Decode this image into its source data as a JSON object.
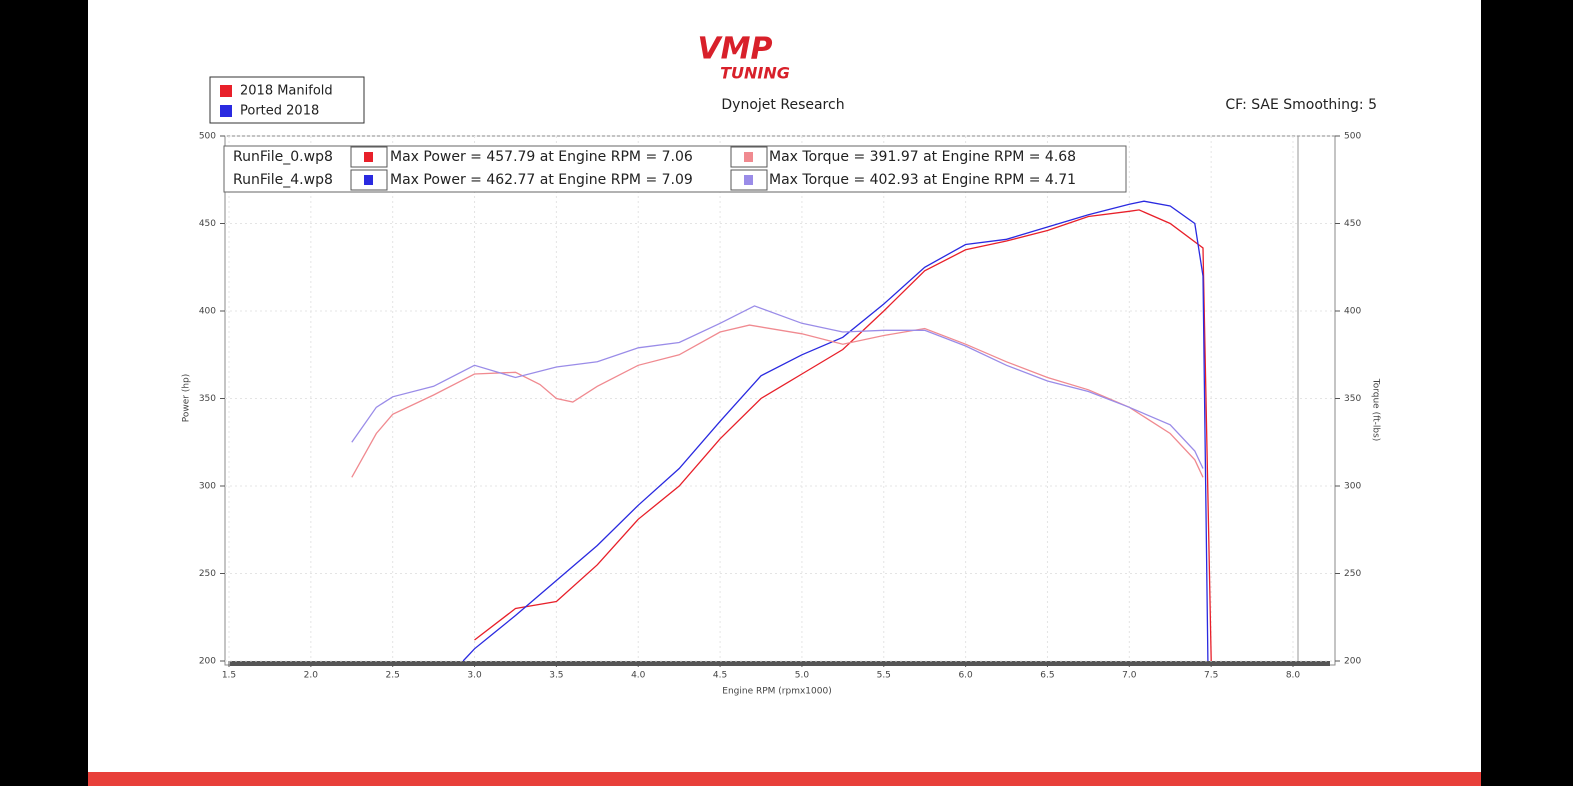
{
  "logo": {
    "line1": "VMP",
    "line2": "TUNING"
  },
  "chart_data": {
    "type": "line",
    "title": "Dynojet Research",
    "subtitle": "CF: SAE Smoothing: 5",
    "x_label": "Engine RPM (rpmx1000)",
    "y_label": "Power (hp)",
    "y2_label": "Torque (ft-lbs)",
    "xlim": [
      1.5,
      8.0
    ],
    "ylim": [
      200,
      500
    ],
    "y2lim": [
      200,
      500
    ],
    "xticks": [
      1.5,
      {
        "value": 2,
        "label": "2.0"
      },
      2.5,
      {
        "value": 3,
        "label": "3.0"
      },
      3.5,
      {
        "value": 4,
        "label": "4.0"
      },
      4.5,
      {
        "value": 5,
        "label": "5.0"
      },
      5.5,
      {
        "value": 6,
        "label": "6.0"
      },
      6.5,
      {
        "value": 7,
        "label": "7.0"
      },
      7.5,
      {
        "value": 8,
        "label": "8.0"
      }
    ],
    "yticks": [
      200,
      250,
      300,
      350,
      400,
      450,
      500
    ],
    "y2ticks": [
      200,
      250,
      300,
      350,
      400,
      450,
      500
    ],
    "grid": true,
    "legend": "upper left",
    "series": [
      {
        "name": "2018 Manifold",
        "color": "#e8202a",
        "x": [
          3.0,
          3.25,
          3.5,
          3.75,
          4.0,
          4.25,
          4.5,
          4.75,
          5.0,
          5.25,
          5.5,
          5.75,
          6.0,
          6.25,
          6.5,
          6.75,
          7.0,
          7.06,
          7.25,
          7.45,
          7.5
        ],
        "values": [
          212,
          230,
          234,
          255,
          281,
          300,
          327,
          350,
          364,
          378,
          400,
          423,
          435,
          440,
          446,
          454,
          457,
          457.79,
          450,
          436,
          200
        ]
      },
      {
        "name": "Ported 2018",
        "color": "#2a2ae0",
        "x": [
          2.93,
          3.0,
          3.25,
          3.5,
          3.75,
          4.0,
          4.25,
          4.5,
          4.75,
          5.0,
          5.25,
          5.5,
          5.75,
          6.0,
          6.25,
          6.5,
          6.75,
          7.0,
          7.09,
          7.25,
          7.4,
          7.45,
          7.48
        ],
        "values": [
          200,
          207,
          226,
          246,
          266,
          289,
          310,
          337,
          363,
          375,
          385,
          404,
          425,
          438,
          441,
          448,
          455,
          461,
          462.77,
          460,
          450,
          420,
          200
        ]
      },
      {
        "color": "#f08a90",
        "axis": "y2",
        "x": [
          2.25,
          2.4,
          2.5,
          2.75,
          3.0,
          3.25,
          3.4,
          3.5,
          3.6,
          3.75,
          4.0,
          4.25,
          4.5,
          4.68,
          5.0,
          5.25,
          5.5,
          5.75,
          6.0,
          6.25,
          6.5,
          6.75,
          7.0,
          7.25,
          7.4,
          7.45
        ],
        "values": [
          305,
          330,
          341,
          352,
          364,
          365,
          358,
          350,
          348,
          357,
          369,
          375,
          388,
          391.97,
          387,
          381,
          386,
          390,
          381,
          371,
          362,
          355,
          345,
          330,
          315,
          305
        ]
      },
      {
        "color": "#9a8ce8",
        "axis": "y2",
        "x": [
          2.25,
          2.4,
          2.5,
          2.75,
          3.0,
          3.25,
          3.5,
          3.75,
          4.0,
          4.25,
          4.5,
          4.71,
          5.0,
          5.25,
          5.5,
          5.75,
          6.0,
          6.25,
          6.5,
          6.75,
          7.0,
          7.25,
          7.4,
          7.45
        ],
        "values": [
          325,
          345,
          351,
          357,
          369,
          362,
          368,
          371,
          379,
          382,
          393,
          402.93,
          393,
          388,
          389,
          389,
          380,
          369,
          360,
          354,
          345,
          335,
          320,
          310
        ]
      }
    ],
    "info_box": {
      "rows": [
        {
          "file": "RunFile_0.wp8",
          "power": "Max Power = 457.79 at Engine RPM = 7.06",
          "torque": "Max Torque = 391.97 at Engine RPM = 4.68"
        },
        {
          "file": "RunFile_4.wp8",
          "power": "Max Power = 462.77 at Engine RPM = 7.09",
          "torque": "Max Torque = 402.93 at Engine RPM = 4.71"
        }
      ]
    }
  }
}
